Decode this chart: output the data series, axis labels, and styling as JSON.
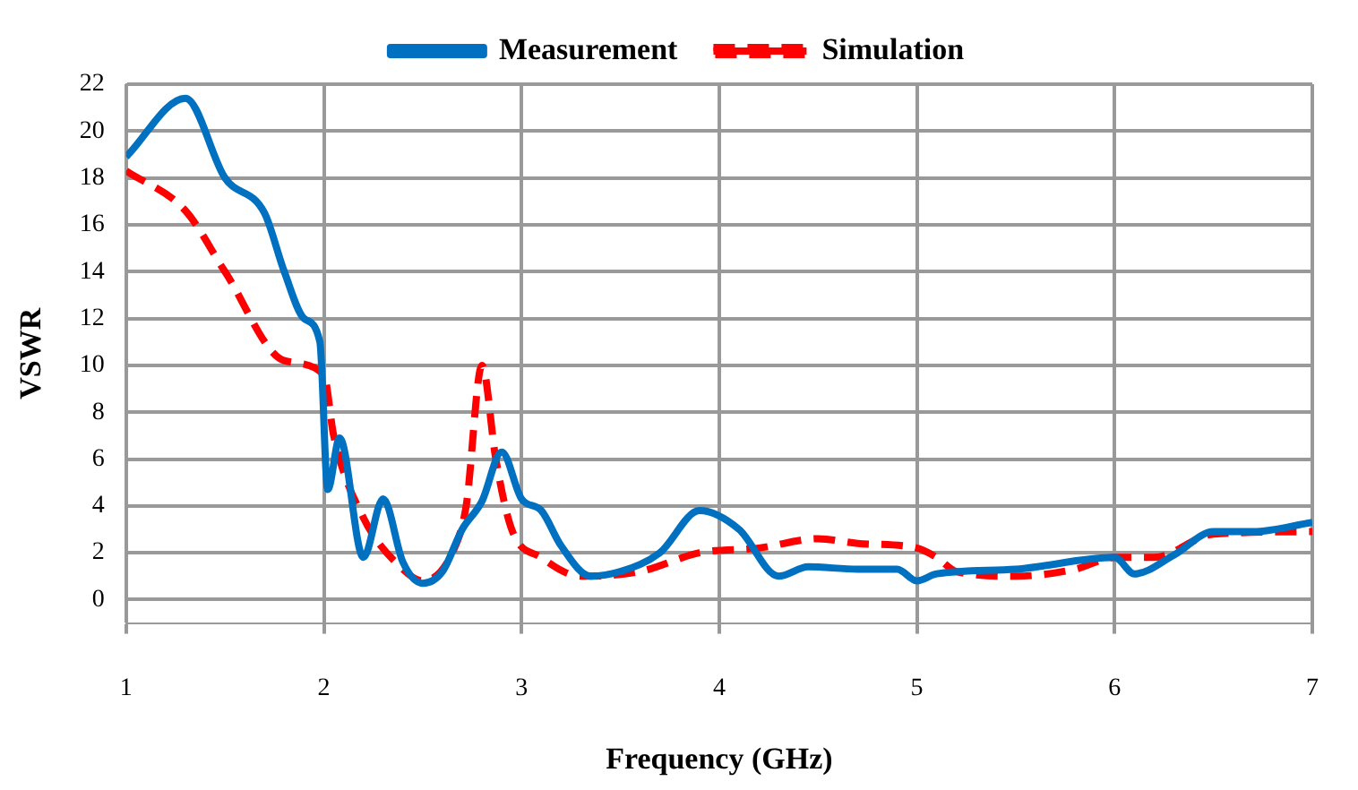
{
  "chart_data": {
    "type": "line",
    "xlabel": "Frequency (GHz)",
    "ylabel": "VSWR",
    "xlim": [
      1,
      7
    ],
    "xticks": [
      1,
      2,
      3,
      4,
      5,
      6,
      7
    ],
    "ylim": [
      -1,
      22
    ],
    "yticks": [
      0,
      2,
      4,
      6,
      8,
      10,
      12,
      14,
      16,
      18,
      20,
      22
    ],
    "grid": true,
    "legend": "top",
    "marker": "none",
    "series": [
      {
        "name": "Measurement",
        "color": "#0070c0",
        "line_style": "solid",
        "x": [
          1,
          1.3,
          1.5,
          1.7,
          1.8,
          1.9,
          1.98,
          2.02,
          2.08,
          2.2,
          2.3,
          2.4,
          2.5,
          2.6,
          2.7,
          2.8,
          2.9,
          3.0,
          3.1,
          3.2,
          3.35,
          3.5,
          3.7,
          3.9,
          4.1,
          4.3,
          4.45,
          4.7,
          4.9,
          5.0,
          5.1,
          5.5,
          6.0,
          6.1,
          6.3,
          6.5,
          6.7,
          7.0
        ],
        "values": [
          18.9,
          21.4,
          18,
          16.5,
          14,
          12,
          11,
          4.7,
          6.9,
          1.8,
          4.3,
          1.6,
          0.7,
          1.2,
          3,
          4.2,
          6.3,
          4.3,
          3.8,
          2.3,
          1.0,
          1.2,
          2.0,
          3.8,
          3.0,
          1.0,
          1.4,
          1.3,
          1.3,
          0.8,
          1.1,
          1.3,
          1.8,
          1.1,
          1.9,
          2.9,
          2.9,
          3.3
        ]
      },
      {
        "name": "Simulation",
        "color": "#ff0000",
        "line_style": "dashed",
        "x": [
          1,
          1.3,
          1.5,
          1.8,
          2.0,
          2.05,
          2.2,
          2.4,
          2.5,
          2.65,
          2.72,
          2.8,
          2.87,
          2.95,
          3.1,
          3.3,
          3.6,
          3.9,
          4.2,
          4.5,
          4.7,
          5.0,
          5.1,
          5.2,
          5.5,
          5.8,
          6.0,
          6.2,
          6.5,
          7.0
        ],
        "values": [
          18.3,
          16.6,
          14,
          10.2,
          9.6,
          7,
          3.5,
          1.3,
          0.8,
          2,
          4,
          10,
          6,
          3,
          1.8,
          1.0,
          1.2,
          2.0,
          2.2,
          2.6,
          2.4,
          2.2,
          1.8,
          1.2,
          1.0,
          1.3,
          1.8,
          1.8,
          2.8,
          2.9
        ]
      }
    ]
  }
}
